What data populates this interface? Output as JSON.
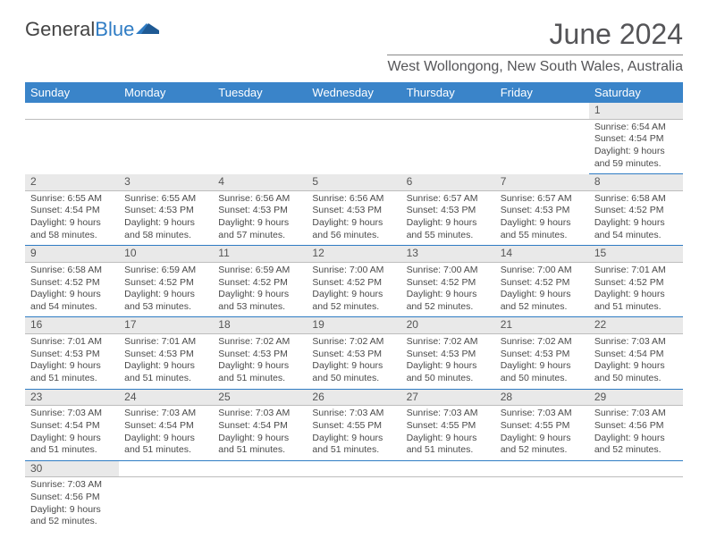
{
  "logo": {
    "text1": "General",
    "text2": "Blue",
    "shape_color": "#2f7cc4"
  },
  "title": "June 2024",
  "location": "West Wollongong, New South Wales, Australia",
  "colors": {
    "header_bg": "#3a84c9",
    "header_text": "#ffffff",
    "daynum_bg": "#e9e9e9",
    "row_border": "#2f7cc4"
  },
  "day_headers": [
    "Sunday",
    "Monday",
    "Tuesday",
    "Wednesday",
    "Thursday",
    "Friday",
    "Saturday"
  ],
  "weeks": [
    [
      null,
      null,
      null,
      null,
      null,
      null,
      {
        "n": "1",
        "sr": "6:54 AM",
        "ss": "4:54 PM",
        "dl": "9 hours and 59 minutes."
      }
    ],
    [
      {
        "n": "2",
        "sr": "6:55 AM",
        "ss": "4:54 PM",
        "dl": "9 hours and 58 minutes."
      },
      {
        "n": "3",
        "sr": "6:55 AM",
        "ss": "4:53 PM",
        "dl": "9 hours and 58 minutes."
      },
      {
        "n": "4",
        "sr": "6:56 AM",
        "ss": "4:53 PM",
        "dl": "9 hours and 57 minutes."
      },
      {
        "n": "5",
        "sr": "6:56 AM",
        "ss": "4:53 PM",
        "dl": "9 hours and 56 minutes."
      },
      {
        "n": "6",
        "sr": "6:57 AM",
        "ss": "4:53 PM",
        "dl": "9 hours and 55 minutes."
      },
      {
        "n": "7",
        "sr": "6:57 AM",
        "ss": "4:53 PM",
        "dl": "9 hours and 55 minutes."
      },
      {
        "n": "8",
        "sr": "6:58 AM",
        "ss": "4:52 PM",
        "dl": "9 hours and 54 minutes."
      }
    ],
    [
      {
        "n": "9",
        "sr": "6:58 AM",
        "ss": "4:52 PM",
        "dl": "9 hours and 54 minutes."
      },
      {
        "n": "10",
        "sr": "6:59 AM",
        "ss": "4:52 PM",
        "dl": "9 hours and 53 minutes."
      },
      {
        "n": "11",
        "sr": "6:59 AM",
        "ss": "4:52 PM",
        "dl": "9 hours and 53 minutes."
      },
      {
        "n": "12",
        "sr": "7:00 AM",
        "ss": "4:52 PM",
        "dl": "9 hours and 52 minutes."
      },
      {
        "n": "13",
        "sr": "7:00 AM",
        "ss": "4:52 PM",
        "dl": "9 hours and 52 minutes."
      },
      {
        "n": "14",
        "sr": "7:00 AM",
        "ss": "4:52 PM",
        "dl": "9 hours and 52 minutes."
      },
      {
        "n": "15",
        "sr": "7:01 AM",
        "ss": "4:52 PM",
        "dl": "9 hours and 51 minutes."
      }
    ],
    [
      {
        "n": "16",
        "sr": "7:01 AM",
        "ss": "4:53 PM",
        "dl": "9 hours and 51 minutes."
      },
      {
        "n": "17",
        "sr": "7:01 AM",
        "ss": "4:53 PM",
        "dl": "9 hours and 51 minutes."
      },
      {
        "n": "18",
        "sr": "7:02 AM",
        "ss": "4:53 PM",
        "dl": "9 hours and 51 minutes."
      },
      {
        "n": "19",
        "sr": "7:02 AM",
        "ss": "4:53 PM",
        "dl": "9 hours and 50 minutes."
      },
      {
        "n": "20",
        "sr": "7:02 AM",
        "ss": "4:53 PM",
        "dl": "9 hours and 50 minutes."
      },
      {
        "n": "21",
        "sr": "7:02 AM",
        "ss": "4:53 PM",
        "dl": "9 hours and 50 minutes."
      },
      {
        "n": "22",
        "sr": "7:03 AM",
        "ss": "4:54 PM",
        "dl": "9 hours and 50 minutes."
      }
    ],
    [
      {
        "n": "23",
        "sr": "7:03 AM",
        "ss": "4:54 PM",
        "dl": "9 hours and 51 minutes."
      },
      {
        "n": "24",
        "sr": "7:03 AM",
        "ss": "4:54 PM",
        "dl": "9 hours and 51 minutes."
      },
      {
        "n": "25",
        "sr": "7:03 AM",
        "ss": "4:54 PM",
        "dl": "9 hours and 51 minutes."
      },
      {
        "n": "26",
        "sr": "7:03 AM",
        "ss": "4:55 PM",
        "dl": "9 hours and 51 minutes."
      },
      {
        "n": "27",
        "sr": "7:03 AM",
        "ss": "4:55 PM",
        "dl": "9 hours and 51 minutes."
      },
      {
        "n": "28",
        "sr": "7:03 AM",
        "ss": "4:55 PM",
        "dl": "9 hours and 52 minutes."
      },
      {
        "n": "29",
        "sr": "7:03 AM",
        "ss": "4:56 PM",
        "dl": "9 hours and 52 minutes."
      }
    ],
    [
      {
        "n": "30",
        "sr": "7:03 AM",
        "ss": "4:56 PM",
        "dl": "9 hours and 52 minutes."
      },
      null,
      null,
      null,
      null,
      null,
      null
    ]
  ],
  "labels": {
    "sunrise": "Sunrise: ",
    "sunset": "Sunset: ",
    "daylight": "Daylight: "
  }
}
